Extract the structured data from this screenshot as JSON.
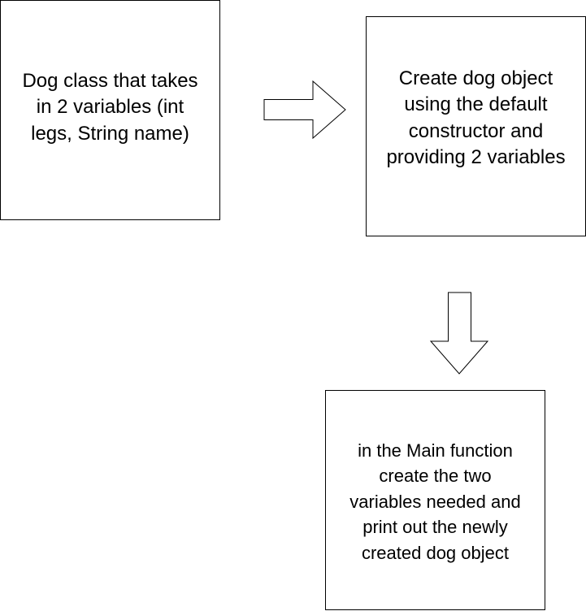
{
  "diagram": {
    "steps": [
      {
        "text": "Dog class that takes\nin 2 variables (int\nlegs, String name)"
      },
      {
        "text": "Create dog object\nusing the default\nconstructor and\nproviding 2 variables"
      },
      {
        "text": "in the Main function\ncreate the two\nvariables needed and\nprint out the newly\ncreated dog object"
      }
    ],
    "connectors": [
      {
        "from": 1,
        "to": 2,
        "direction": "right"
      },
      {
        "from": 2,
        "to": 3,
        "direction": "down"
      }
    ]
  },
  "colors": {
    "stroke": "#000000",
    "fill": "#ffffff",
    "text": "#000000"
  }
}
